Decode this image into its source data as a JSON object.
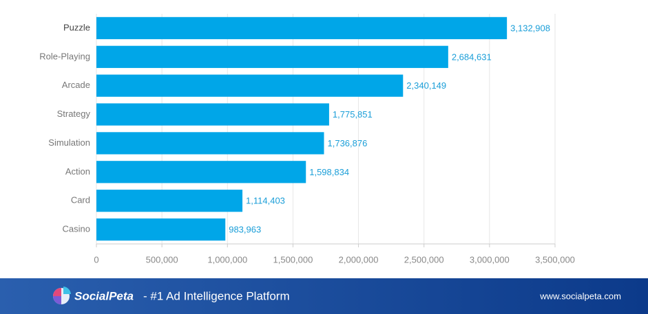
{
  "chart_data": {
    "type": "bar",
    "orientation": "horizontal",
    "categories": [
      "Puzzle",
      "Role-Playing",
      "Arcade",
      "Strategy",
      "Simulation",
      "Action",
      "Card",
      "Casino"
    ],
    "values": [
      3132908,
      2684631,
      2340149,
      1775851,
      1736876,
      1598834,
      1114403,
      983963
    ],
    "value_labels": [
      "3,132,908",
      "2,684,631",
      "2,340,149",
      "1,775,851",
      "1,736,876",
      "1,598,834",
      "1,114,403",
      "983,963"
    ],
    "color": "#00a6e8",
    "xlim": [
      0,
      3500000
    ],
    "xticks": [
      0,
      {
        "value": 500000,
        "label": "500,000"
      },
      {
        "value": 1000000,
        "label": "1,000,000"
      },
      {
        "value": 1500000,
        "label": "1,500,000"
      },
      {
        "value": 2000000,
        "label": "2,000,000"
      },
      {
        "value": 2500000,
        "label": "2,500,000"
      },
      {
        "value": 3000000,
        "label": "3,000,000"
      },
      {
        "value": 3500000,
        "label": "3,500,000"
      }
    ],
    "grid": true
  },
  "footer": {
    "brand": "SocialPeta",
    "tagline": "- #1 Ad Intelligence Platform",
    "url": "www.socialpeta.com"
  }
}
